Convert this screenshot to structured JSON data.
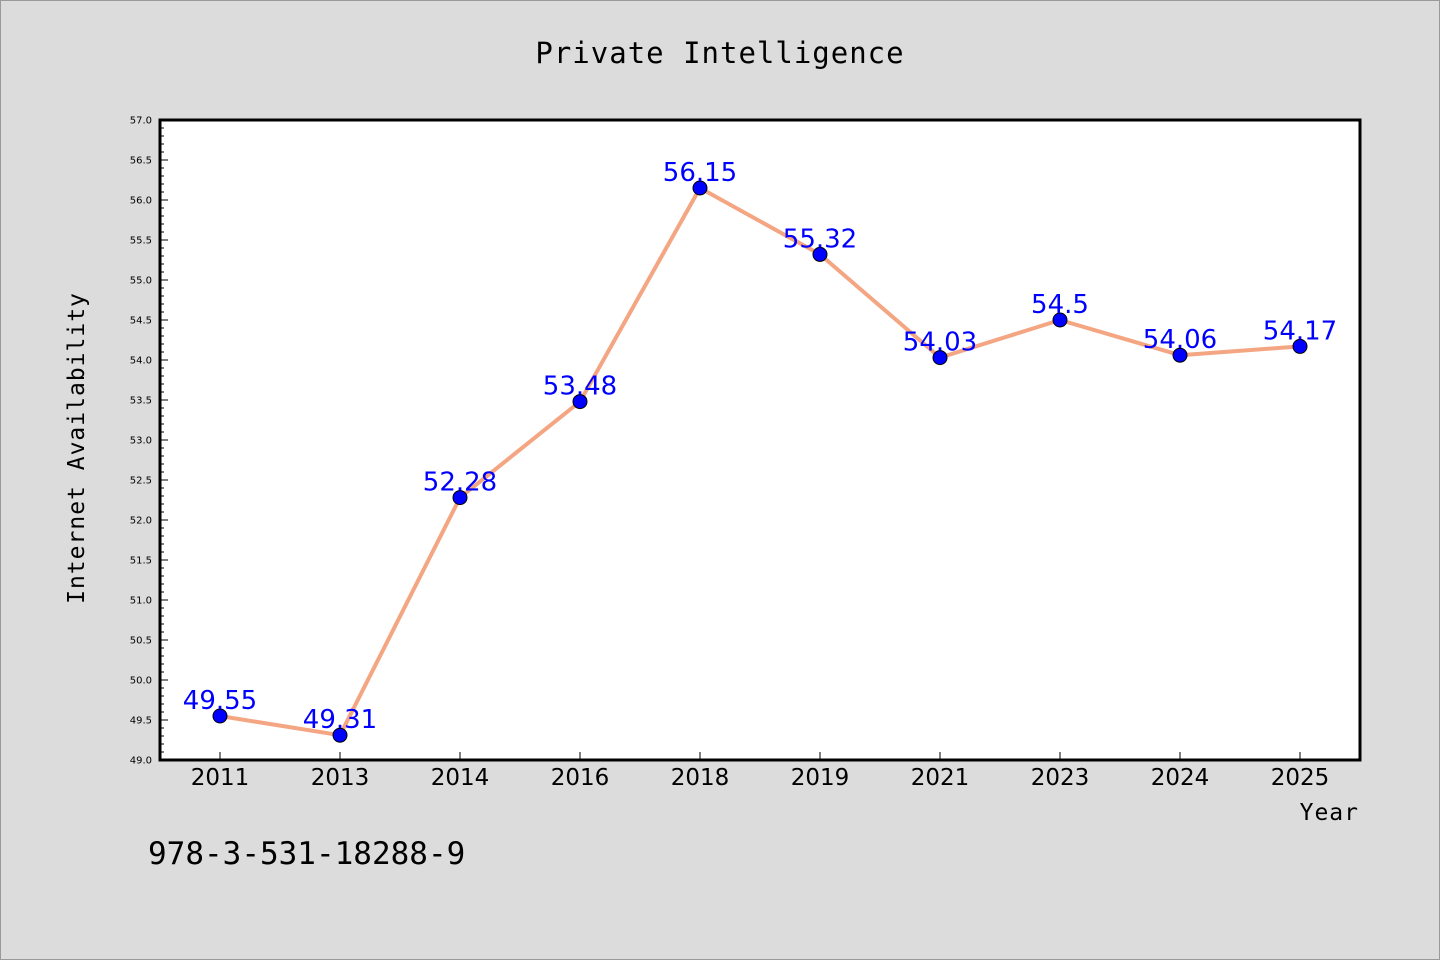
{
  "chart_data": {
    "type": "line",
    "title": "Private Intelligence",
    "xlabel": "Year",
    "ylabel": "Internet Availability",
    "categories": [
      "2011",
      "2013",
      "2014",
      "2016",
      "2018",
      "2019",
      "2021",
      "2023",
      "2024",
      "2025"
    ],
    "series": [
      {
        "values": [
          49.55,
          49.31,
          52.28,
          53.48,
          56.15,
          55.32,
          54.03,
          54.5,
          54.06,
          54.17
        ],
        "labels": [
          "49.55",
          "49.31",
          "52.28",
          "53.48",
          "56.15",
          "55.32",
          "54.03",
          "54.5",
          "54.06",
          "54.17"
        ]
      }
    ],
    "ylim": [
      49.0,
      57.0
    ],
    "yticks": [
      "49.0",
      "49.5",
      "50.0",
      "50.5",
      "51.0",
      "51.5",
      "52.0",
      "52.5",
      "53.0",
      "53.5",
      "54.0",
      "54.5",
      "55.0",
      "55.5",
      "56.0",
      "56.5",
      "57.0"
    ],
    "grid": false,
    "legend": "none",
    "colors": {
      "line": "#f4a582",
      "marker": "#0000ff",
      "data_label": "#0000ff",
      "plot_background": "#ffffff",
      "figure_background": "#dcdcdc"
    }
  },
  "footer": {
    "code": "978-3-531-18288-9"
  }
}
